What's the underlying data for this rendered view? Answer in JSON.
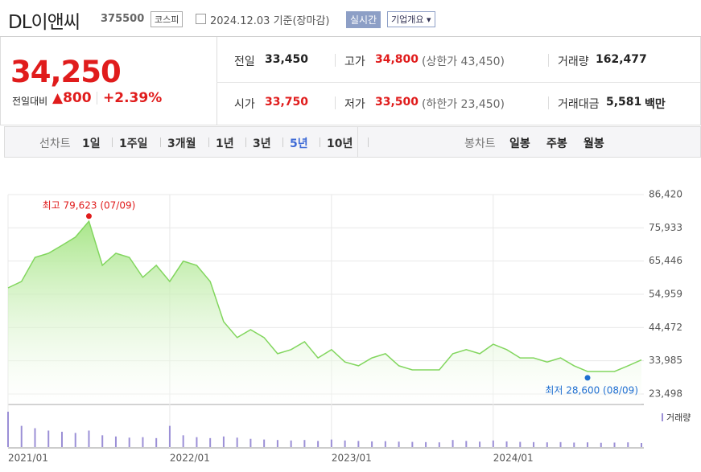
{
  "header": {
    "name": "DL이앤씨",
    "code": "375500",
    "market": "코스피",
    "date": "2024.12.03 기준(장마감)",
    "realtime": "실시간",
    "company_info": "기업개요"
  },
  "quote": {
    "price": "34,250",
    "change_label": "전일대비",
    "change": "800",
    "change_rate": "+2.39%"
  },
  "stats": [
    {
      "label": "전일",
      "value": "33,450",
      "color": "#222222"
    },
    {
      "label": "고가",
      "value": "34,800",
      "note": "(상한가 43,450)",
      "color": "#e01c1c"
    },
    {
      "label": "거래량",
      "value": "162,477",
      "color": "#222222"
    },
    {
      "label": "시가",
      "value": "33,750",
      "color": "#e01c1c"
    },
    {
      "label": "저가",
      "value": "33,500",
      "note": "(하한가 23,450)",
      "color": "#e01c1c"
    },
    {
      "label": "거래대금",
      "value": "5,581",
      "unit": "백만",
      "color": "#222222"
    }
  ],
  "tabs": {
    "line_label": "선차트",
    "line_periods": [
      "1일",
      "1주일",
      "3개월",
      "1년",
      "3년",
      "5년",
      "10년"
    ],
    "active_period": 5,
    "candle_label": "봉차트",
    "candle_periods": [
      "일봉",
      "주봉",
      "월봉"
    ]
  },
  "chart_data": {
    "type": "line",
    "x": [
      "2021/01",
      "2021/02",
      "2021/03",
      "2021/04",
      "2021/05",
      "2021/06",
      "2021/07",
      "2021/08",
      "2021/09",
      "2021/10",
      "2021/11",
      "2021/12",
      "2022/01",
      "2022/02",
      "2022/03",
      "2022/04",
      "2022/05",
      "2022/06",
      "2022/07",
      "2022/08",
      "2022/09",
      "2022/10",
      "2022/11",
      "2022/12",
      "2023/01",
      "2023/02",
      "2023/03",
      "2023/04",
      "2023/05",
      "2023/06",
      "2023/07",
      "2023/08",
      "2023/09",
      "2023/10",
      "2023/11",
      "2023/12",
      "2024/01",
      "2024/02",
      "2024/03",
      "2024/04",
      "2024/05",
      "2024/06",
      "2024/07",
      "2024/08",
      "2024/09",
      "2024/10",
      "2024/11",
      "2024/12"
    ],
    "series": [
      {
        "color": "#82d65e",
        "values": [
          57000,
          59000,
          66600,
          67900,
          70400,
          73000,
          78000,
          64100,
          67900,
          66600,
          60300,
          64100,
          59000,
          65400,
          64100,
          59000,
          46300,
          41300,
          43800,
          41300,
          36200,
          37500,
          40000,
          34900,
          37500,
          33600,
          32400,
          34900,
          36200,
          32400,
          31100,
          31100,
          31100,
          36200,
          37500,
          36200,
          39200,
          37500,
          34900,
          34900,
          33600,
          34900,
          32400,
          30600,
          30600,
          30600,
          32400,
          34250
        ]
      }
    ],
    "volume": {
      "name": "거래량",
      "color": "#9b8fd6",
      "values": [
        1500000,
        900000,
        800000,
        700000,
        650000,
        600000,
        700000,
        500000,
        450000,
        400000,
        420000,
        380000,
        900000,
        500000,
        420000,
        380000,
        450000,
        400000,
        350000,
        320000,
        300000,
        280000,
        300000,
        260000,
        320000,
        280000,
        260000,
        240000,
        250000,
        230000,
        220000,
        210000,
        200000,
        300000,
        260000,
        230000,
        280000,
        240000,
        220000,
        210000,
        200000,
        210000,
        190000,
        200000,
        180000,
        190000,
        200000,
        170000
      ]
    },
    "ylim": [
      23498,
      86420
    ],
    "yticks": [
      {
        "value": 23498,
        "label": "23,498"
      },
      {
        "value": 33985,
        "label": "33,985"
      },
      {
        "value": 44472,
        "label": "44,472"
      },
      {
        "value": 54959,
        "label": "54,959"
      },
      {
        "value": 65446,
        "label": "65,446"
      },
      {
        "value": 75933,
        "label": "75,933"
      },
      {
        "value": 86420,
        "label": "86,420"
      }
    ],
    "xticks": [
      "2021/01",
      "2022/01",
      "2023/01",
      "2024/01"
    ],
    "high": {
      "label": "최고 79,623 (07/09)",
      "value": 79623,
      "x": "2021/07",
      "color": "#e01c1c"
    },
    "low": {
      "label": "최저 28,600 (08/09)",
      "value": 28600,
      "x": "2024/08",
      "color": "#1f6fd1"
    },
    "grid": true
  }
}
